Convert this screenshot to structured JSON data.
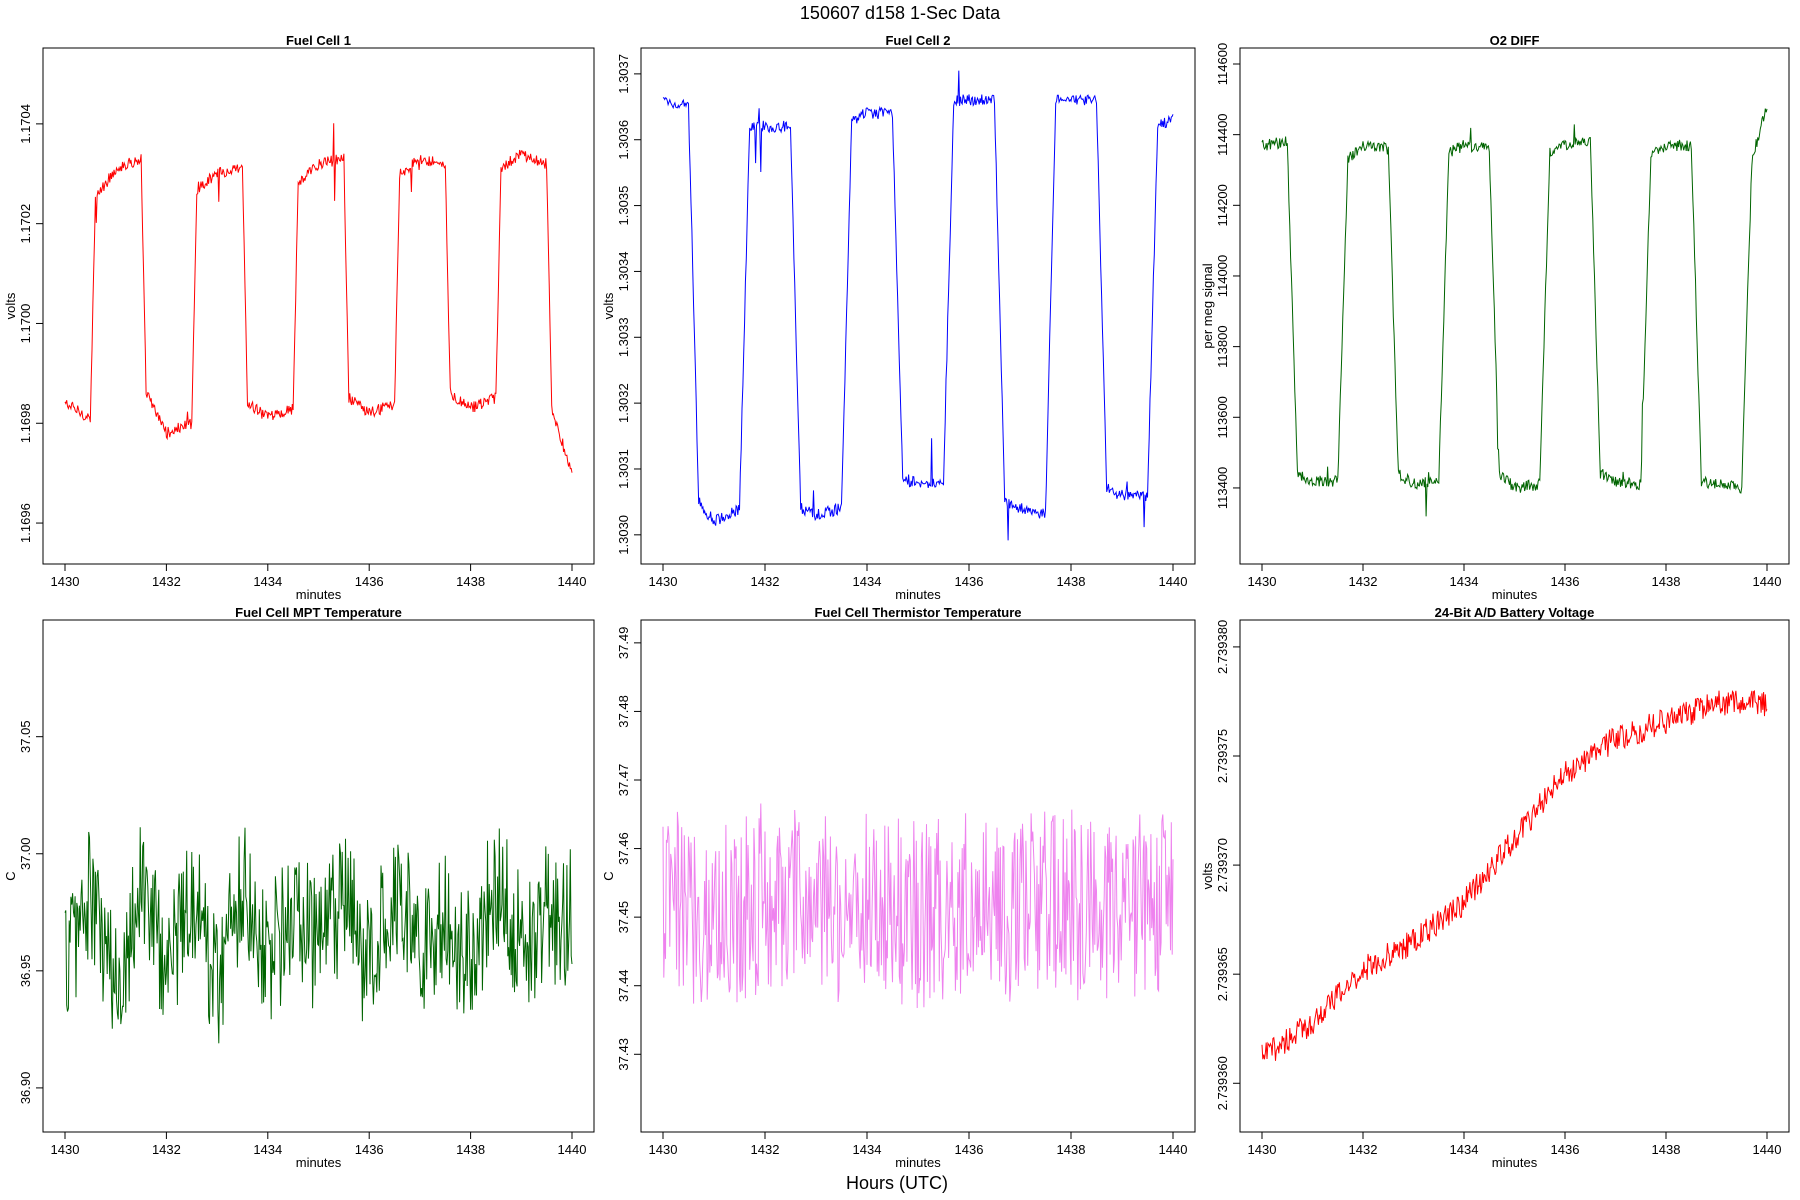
{
  "figure": {
    "title": "150607   d158   1-Sec Data",
    "xlabel": "Hours (UTC)"
  },
  "chart_data": [
    {
      "type": "line",
      "title": "Fuel Cell 1",
      "xlabel": "minutes",
      "ylabel": "volts",
      "color": "#ff0000",
      "xlim": [
        1430,
        1440
      ],
      "ylim": [
        1.16955,
        1.17052
      ],
      "xticks": [
        1430,
        1432,
        1434,
        1436,
        1438,
        1440
      ],
      "xtick_labels": [
        "1430",
        "1432",
        "1434",
        "1436",
        "1438",
        "1440"
      ],
      "yticks": [
        1.1696,
        1.1698,
        1.17,
        1.1702,
        1.1704
      ],
      "ytick_labels": [
        "1.1696",
        "1.1698",
        "1.1700",
        "1.1702",
        "1.1704"
      ],
      "x": [
        1430.0,
        1430.5,
        1430.6,
        1431.0,
        1431.5,
        1431.6,
        1432.0,
        1432.5,
        1432.6,
        1433.0,
        1433.5,
        1433.6,
        1434.0,
        1434.5,
        1434.6,
        1435.0,
        1435.5,
        1435.6,
        1436.0,
        1436.5,
        1436.6,
        1437.0,
        1437.5,
        1437.6,
        1438.0,
        1438.5,
        1438.6,
        1439.0,
        1439.5,
        1439.6,
        1440.0
      ],
      "y": [
        1.16984,
        1.16981,
        1.17025,
        1.17031,
        1.17033,
        1.16986,
        1.16978,
        1.1698,
        1.17027,
        1.1703,
        1.17031,
        1.16984,
        1.16981,
        1.16983,
        1.17028,
        1.17032,
        1.17033,
        1.16985,
        1.16982,
        1.16984,
        1.1703,
        1.17033,
        1.17032,
        1.16986,
        1.16983,
        1.16985,
        1.17031,
        1.17034,
        1.17032,
        1.16983,
        1.1697
      ]
    },
    {
      "type": "line",
      "title": "Fuel Cell 2",
      "xlabel": "minutes",
      "ylabel": "volts",
      "color": "#0000ff",
      "xlim": [
        1430,
        1440
      ],
      "ylim": [
        1.30298,
        1.303715
      ],
      "xticks": [
        1430,
        1432,
        1434,
        1436,
        1438,
        1440
      ],
      "xtick_labels": [
        "1430",
        "1432",
        "1434",
        "1436",
        "1438",
        "1440"
      ],
      "yticks": [
        1.303,
        1.3031,
        1.3032,
        1.3033,
        1.3034,
        1.3035,
        1.3036,
        1.3037
      ],
      "ytick_labels": [
        "1.3030",
        "1.3031",
        "1.3032",
        "1.3033",
        "1.3034",
        "1.3035",
        "1.3036",
        "1.3037"
      ],
      "x": [
        1430.0,
        1430.5,
        1430.7,
        1431.0,
        1431.5,
        1431.7,
        1432.0,
        1432.5,
        1432.7,
        1433.0,
        1433.5,
        1433.7,
        1434.0,
        1434.5,
        1434.7,
        1435.0,
        1435.5,
        1435.7,
        1436.0,
        1436.5,
        1436.7,
        1437.0,
        1437.5,
        1437.7,
        1438.0,
        1438.5,
        1438.7,
        1439.0,
        1439.5,
        1439.7,
        1440.0
      ],
      "y": [
        1.30366,
        1.30365,
        1.30305,
        1.30302,
        1.30304,
        1.30362,
        1.30362,
        1.30362,
        1.30304,
        1.30303,
        1.30304,
        1.30363,
        1.30364,
        1.30364,
        1.30308,
        1.30308,
        1.30308,
        1.30366,
        1.30366,
        1.30366,
        1.30305,
        1.30304,
        1.30303,
        1.30366,
        1.30366,
        1.30366,
        1.30307,
        1.30306,
        1.30306,
        1.30362,
        1.30363
      ]
    },
    {
      "type": "line",
      "title": "O2 DIFF",
      "xlabel": "minutes",
      "ylabel": "per meg signal",
      "color": "#006400",
      "xlim": [
        1430,
        1440
      ],
      "ylim": [
        113230,
        114600
      ],
      "xticks": [
        1430,
        1432,
        1434,
        1436,
        1438,
        1440
      ],
      "xtick_labels": [
        "1430",
        "1432",
        "1434",
        "1436",
        "1438",
        "1440"
      ],
      "yticks": [
        113400,
        113600,
        113800,
        114000,
        114200,
        114400,
        114600
      ],
      "ytick_labels": [
        "113400",
        "113600",
        "113800",
        "114000",
        "114200",
        "114400",
        "114600"
      ],
      "x": [
        1430.0,
        1430.5,
        1430.7,
        1431.0,
        1431.5,
        1431.7,
        1432.0,
        1432.5,
        1432.7,
        1433.0,
        1433.5,
        1433.7,
        1434.0,
        1434.5,
        1434.7,
        1435.0,
        1435.5,
        1435.7,
        1436.0,
        1436.5,
        1436.7,
        1437.0,
        1437.5,
        1437.7,
        1438.0,
        1438.5,
        1438.7,
        1439.0,
        1439.5,
        1439.7,
        1440.0
      ],
      "y": [
        114370,
        114380,
        113440,
        113420,
        113420,
        114330,
        114370,
        114360,
        113440,
        113410,
        113420,
        114350,
        114370,
        114360,
        113440,
        113400,
        113410,
        114350,
        114370,
        114380,
        113440,
        113420,
        113410,
        114340,
        114370,
        114370,
        113420,
        113410,
        113400,
        114330,
        114480
      ]
    },
    {
      "type": "line",
      "title": "Fuel Cell MPT Temperature",
      "xlabel": "minutes",
      "ylabel": "C",
      "color": "#006400",
      "xlim": [
        1430,
        1440
      ],
      "ylim": [
        36.888,
        37.093
      ],
      "xticks": [
        1430,
        1432,
        1434,
        1436,
        1438,
        1440
      ],
      "xtick_labels": [
        "1430",
        "1432",
        "1434",
        "1436",
        "1438",
        "1440"
      ],
      "yticks": [
        36.9,
        36.95,
        37.0,
        37.05
      ],
      "ytick_labels": [
        "36.90",
        "36.95",
        "37.00",
        "37.05"
      ],
      "x": [
        1430.0,
        1430.5,
        1431.0,
        1431.5,
        1432.0,
        1432.5,
        1433.0,
        1433.5,
        1434.0,
        1434.5,
        1435.0,
        1435.5,
        1436.0,
        1436.5,
        1437.0,
        1437.5,
        1438.0,
        1438.5,
        1439.0,
        1439.5,
        1440.0
      ],
      "y": [
        36.955,
        36.982,
        36.94,
        36.99,
        36.95,
        36.985,
        36.945,
        36.99,
        36.955,
        36.975,
        36.96,
        36.98,
        36.95,
        36.99,
        36.96,
        36.97,
        36.955,
        36.99,
        36.96,
        36.975,
        36.972
      ],
      "noise": 0.03
    },
    {
      "type": "line",
      "title": "Fuel Cell Thermistor Temperature",
      "xlabel": "minutes",
      "ylabel": "C",
      "color": "#ee82ee",
      "xlim": [
        1430,
        1440
      ],
      "ylim": [
        37.421,
        37.491
      ],
      "xticks": [
        1430,
        1432,
        1434,
        1436,
        1438,
        1440
      ],
      "xtick_labels": [
        "1430",
        "1432",
        "1434",
        "1436",
        "1438",
        "1440"
      ],
      "yticks": [
        37.43,
        37.44,
        37.45,
        37.46,
        37.47,
        37.48,
        37.49
      ],
      "ytick_labels": [
        "37.43",
        "37.44",
        "37.45",
        "37.46",
        "37.47",
        "37.48",
        "37.49"
      ],
      "x": [
        1430.0,
        1431.0,
        1432.0,
        1433.0,
        1434.0,
        1435.0,
        1436.0,
        1437.0,
        1438.0,
        1439.0,
        1440.0
      ],
      "y": [
        37.452,
        37.45,
        37.453,
        37.451,
        37.452,
        37.45,
        37.453,
        37.451,
        37.452,
        37.451,
        37.452
      ],
      "noise": 0.014
    },
    {
      "type": "line",
      "title": "24-Bit A/D Battery Voltage",
      "xlabel": "minutes",
      "ylabel": "volts",
      "color": "#ff0000",
      "xlim": [
        1430,
        1440
      ],
      "ylim": [
        2.7393585,
        2.7393805
      ],
      "xticks": [
        1430,
        1432,
        1434,
        1436,
        1438,
        1440
      ],
      "xtick_labels": [
        "1430",
        "1432",
        "1434",
        "1436",
        "1438",
        "1440"
      ],
      "yticks": [
        2.73936,
        2.739365,
        2.73937,
        2.739375,
        2.73938
      ],
      "ytick_labels": [
        "2.739360",
        "2.739365",
        "2.739370",
        "2.739375",
        "2.739380"
      ],
      "x": [
        1430.0,
        1431.0,
        1432.0,
        1433.0,
        1434.0,
        1435.0,
        1436.0,
        1437.0,
        1438.0,
        1439.0,
        1440.0
      ],
      "y": [
        2.7393612,
        2.7393628,
        2.7393652,
        2.7393665,
        2.7393683,
        2.7393712,
        2.7393742,
        2.7393758,
        2.7393766,
        2.7393774,
        2.7393774
      ],
      "noise": 6e-07
    }
  ]
}
